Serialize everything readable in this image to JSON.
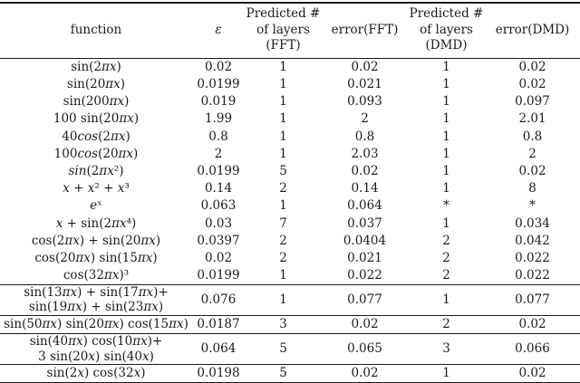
{
  "table": {
    "headers": {
      "function": "function",
      "epsilon": "ε",
      "layers_fft": "Predicted #\nof layers\n(FFT)",
      "error_fft": "error(FFT)",
      "layers_dmd": "Predicted #\nof layers\n(DMD)",
      "error_dmd": "error(DMD)"
    },
    "groups": [
      {
        "rows": [
          {
            "function": "sin(2πx)",
            "epsilon": "0.02",
            "layers_fft": "1",
            "error_fft": "0.02",
            "layers_dmd": "1",
            "error_dmd": "0.02"
          },
          {
            "function": "sin(20πx)",
            "epsilon": "0.0199",
            "layers_fft": "1",
            "error_fft": "0.021",
            "layers_dmd": "1",
            "error_dmd": "0.02"
          },
          {
            "function": "sin(200πx)",
            "epsilon": "0.019",
            "layers_fft": "1",
            "error_fft": "0.093",
            "layers_dmd": "1",
            "error_dmd": "0.097"
          },
          {
            "function": "100 sin(20πx)",
            "epsilon": "1.99",
            "layers_fft": "1",
            "error_fft": "2",
            "layers_dmd": "1",
            "error_dmd": "2.01"
          },
          {
            "function": "40cos(2πx)",
            "italic_function": true,
            "epsilon": "0.8",
            "layers_fft": "1",
            "error_fft": "0.8",
            "layers_dmd": "1",
            "error_dmd": "0.8"
          },
          {
            "function": "100cos(20πx)",
            "italic_function": true,
            "epsilon": "2",
            "layers_fft": "1",
            "error_fft": "2.03",
            "layers_dmd": "1",
            "error_dmd": "2"
          },
          {
            "function": "sin(2πx²)",
            "italic_function": true,
            "epsilon": "0.0199",
            "layers_fft": "5",
            "error_fft": "0.02",
            "layers_dmd": "1",
            "error_dmd": "0.02"
          },
          {
            "function": "x + x² + x³",
            "epsilon": "0.14",
            "layers_fft": "2",
            "error_fft": "0.14",
            "layers_dmd": "1",
            "error_dmd": "8"
          },
          {
            "function": "eˣ",
            "epsilon": "0.063",
            "layers_fft": "1",
            "error_fft": "0.064",
            "layers_dmd": "*",
            "error_dmd": "*"
          },
          {
            "function": "x + sin(2πx⁴)",
            "epsilon": "0.03",
            "layers_fft": "7",
            "error_fft": "0.037",
            "layers_dmd": "1",
            "error_dmd": "0.034"
          },
          {
            "function": "cos(2πx) + sin(20πx)",
            "epsilon": "0.0397",
            "layers_fft": "2",
            "error_fft": "0.0404",
            "layers_dmd": "2",
            "error_dmd": "0.042"
          },
          {
            "function": "cos(20πx) sin(15πx)",
            "epsilon": "0.02",
            "layers_fft": "2",
            "error_fft": "0.021",
            "layers_dmd": "2",
            "error_dmd": "0.022"
          },
          {
            "function": "cos(32πx)³",
            "epsilon": "0.0199",
            "layers_fft": "1",
            "error_fft": "0.022",
            "layers_dmd": "2",
            "error_dmd": "0.022"
          }
        ]
      },
      {
        "rows": [
          {
            "function": "sin(13πx) + sin(17πx)+\nsin(19πx) + sin(23πx)",
            "epsilon": "0.076",
            "layers_fft": "1",
            "error_fft": "0.077",
            "layers_dmd": "1",
            "error_dmd": "0.077"
          }
        ]
      },
      {
        "rows": [
          {
            "function": "sin(50πx) sin(20πx) cos(15πx)",
            "epsilon": "0.0187",
            "layers_fft": "3",
            "error_fft": "0.02",
            "layers_dmd": "2",
            "error_dmd": "0.02"
          }
        ]
      },
      {
        "rows": [
          {
            "function": "sin(40πx) cos(10πx)+\n3 sin(20x) sin(40x)",
            "epsilon": "0.064",
            "layers_fft": "5",
            "error_fft": "0.065",
            "layers_dmd": "3",
            "error_dmd": "0.066"
          }
        ]
      },
      {
        "rows": [
          {
            "function": "sin(2x) cos(32x)",
            "epsilon": "0.0198",
            "layers_fft": "5",
            "error_fft": "0.02",
            "layers_dmd": "1",
            "error_dmd": "0.02"
          }
        ]
      }
    ]
  }
}
